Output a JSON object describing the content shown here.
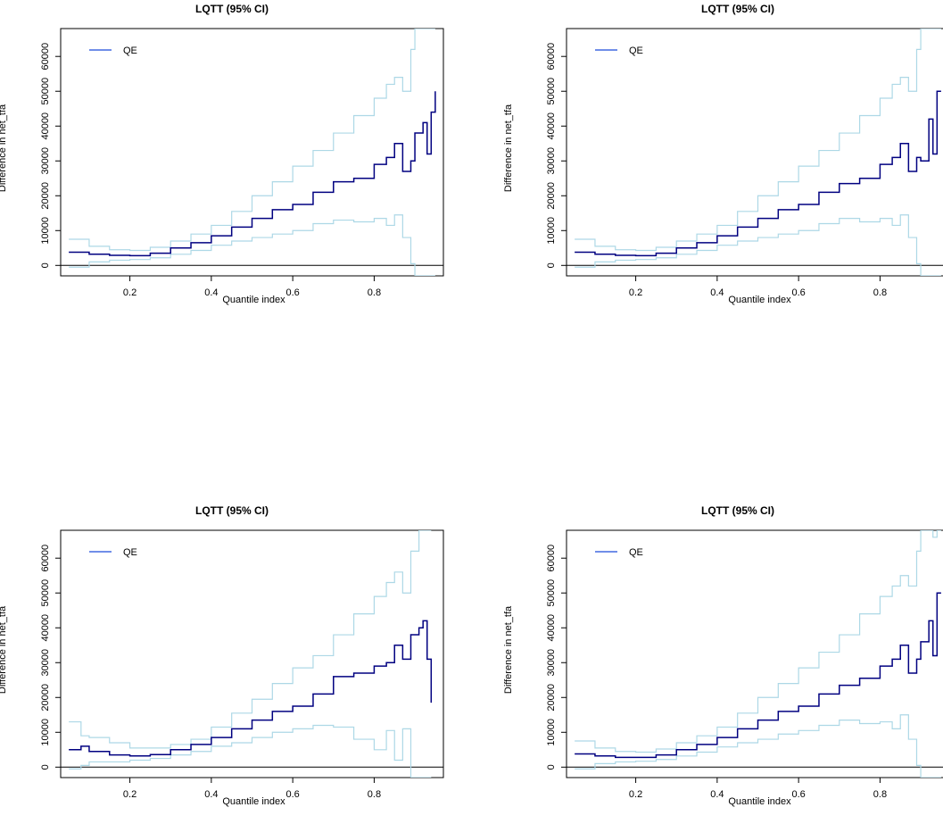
{
  "colors": {
    "estimate": "#000080",
    "ci": "#add8e6",
    "legend_line": "#4169e1",
    "axis": "#000000"
  },
  "chart_data": [
    {
      "type": "line",
      "title": "LQTT (95% CI)",
      "xlabel": "Quantile index",
      "ylabel": "Difference in net_tfa",
      "legend": [
        "QE"
      ],
      "legend_position": "top-left",
      "xlim": [
        0.03,
        0.97
      ],
      "ylim": [
        -3000,
        68000
      ],
      "xticks": [
        "0.2",
        "0.4",
        "0.6",
        "0.8"
      ],
      "yticks": [
        "0",
        "10000",
        "20000",
        "30000",
        "40000",
        "50000",
        "60000"
      ],
      "x": [
        0.05,
        0.1,
        0.15,
        0.2,
        0.25,
        0.3,
        0.35,
        0.4,
        0.45,
        0.5,
        0.55,
        0.6,
        0.65,
        0.7,
        0.75,
        0.8,
        0.83,
        0.85,
        0.87,
        0.89,
        0.9,
        0.92,
        0.93,
        0.94,
        0.95
      ],
      "series": [
        {
          "name": "QE",
          "role": "estimate",
          "values": [
            3800,
            3200,
            2900,
            2800,
            3500,
            5000,
            6500,
            8500,
            11000,
            13500,
            16000,
            17500,
            21000,
            24000,
            25000,
            29000,
            31000,
            35000,
            27000,
            30000,
            38000,
            41000,
            32000,
            44000,
            50000
          ]
        },
        {
          "role": "upper",
          "values": [
            7500,
            5500,
            4500,
            4300,
            5200,
            7000,
            9000,
            11500,
            15500,
            20000,
            24000,
            28500,
            33000,
            38000,
            43000,
            48000,
            52000,
            54000,
            50000,
            62000,
            68000,
            68000,
            68000,
            68000,
            68000
          ]
        },
        {
          "role": "lower",
          "values": [
            -500,
            1000,
            1500,
            1700,
            2200,
            3200,
            4300,
            5800,
            7000,
            8000,
            9000,
            10000,
            12000,
            13000,
            12500,
            13500,
            11500,
            14500,
            8000,
            500,
            -3000,
            -3000,
            -3000,
            -3000,
            -3000
          ]
        }
      ]
    },
    {
      "type": "line",
      "title": "LQTT (95% CI)",
      "xlabel": "Quantile index",
      "ylabel": "Difference in net_tfa",
      "legend": [
        "QE"
      ],
      "legend_position": "top-left",
      "xlim": [
        0.03,
        0.97
      ],
      "ylim": [
        -3000,
        68000
      ],
      "xticks": [
        "0.2",
        "0.4",
        "0.6",
        "0.8"
      ],
      "yticks": [
        "0",
        "10000",
        "20000",
        "30000",
        "40000",
        "50000",
        "60000"
      ],
      "x": [
        0.05,
        0.1,
        0.15,
        0.2,
        0.25,
        0.3,
        0.35,
        0.4,
        0.45,
        0.5,
        0.55,
        0.6,
        0.65,
        0.7,
        0.75,
        0.8,
        0.83,
        0.85,
        0.87,
        0.89,
        0.9,
        0.92,
        0.93,
        0.94,
        0.95
      ],
      "series": [
        {
          "name": "QE",
          "role": "estimate",
          "values": [
            3800,
            3200,
            2900,
            2800,
            3500,
            5000,
            6500,
            8500,
            11000,
            13500,
            16000,
            17500,
            21000,
            23500,
            25000,
            29000,
            31000,
            35000,
            27000,
            31000,
            30000,
            42000,
            32000,
            50000,
            50000
          ]
        },
        {
          "role": "upper",
          "values": [
            7500,
            5500,
            4500,
            4300,
            5200,
            7000,
            9000,
            11500,
            15500,
            20000,
            24000,
            28500,
            33000,
            38000,
            43000,
            48000,
            52000,
            54000,
            50000,
            62000,
            68000,
            68000,
            68000,
            68000,
            68000
          ]
        },
        {
          "role": "lower",
          "values": [
            -500,
            1000,
            1500,
            1700,
            2200,
            3200,
            4300,
            5800,
            7000,
            8000,
            9000,
            10000,
            12000,
            13500,
            12500,
            13500,
            11500,
            14500,
            8000,
            500,
            -3000,
            -3000,
            -3000,
            -3000,
            -3000
          ]
        }
      ]
    },
    {
      "type": "line",
      "title": "LQTT (95% CI)",
      "xlabel": "Quantile index",
      "ylabel": "Difference in net_tfa",
      "legend": [
        "QE"
      ],
      "legend_position": "top-left",
      "xlim": [
        0.03,
        0.97
      ],
      "ylim": [
        -3000,
        68000
      ],
      "xticks": [
        "0.2",
        "0.4",
        "0.6",
        "0.8"
      ],
      "yticks": [
        "0",
        "10000",
        "20000",
        "30000",
        "40000",
        "50000",
        "60000"
      ],
      "x": [
        0.05,
        0.08,
        0.1,
        0.15,
        0.2,
        0.25,
        0.3,
        0.35,
        0.4,
        0.45,
        0.5,
        0.55,
        0.6,
        0.65,
        0.7,
        0.75,
        0.8,
        0.83,
        0.85,
        0.87,
        0.89,
        0.91,
        0.92,
        0.93,
        0.94
      ],
      "series": [
        {
          "name": "QE",
          "role": "estimate",
          "values": [
            5000,
            6000,
            4500,
            3500,
            3200,
            3600,
            5000,
            6500,
            8500,
            11000,
            13500,
            16000,
            17500,
            21000,
            26000,
            27000,
            29000,
            30000,
            35000,
            31000,
            38000,
            40000,
            42000,
            31000,
            18500
          ]
        },
        {
          "role": "upper",
          "values": [
            13000,
            9000,
            8500,
            7000,
            5500,
            5500,
            6500,
            8000,
            11500,
            15500,
            19500,
            24000,
            28500,
            32000,
            38000,
            44000,
            49000,
            53000,
            56000,
            50000,
            62000,
            68000,
            68000,
            68000,
            68000
          ]
        },
        {
          "role": "lower",
          "values": [
            -500,
            500,
            1500,
            1500,
            2000,
            2500,
            3500,
            4500,
            6000,
            7000,
            8500,
            10000,
            11000,
            12000,
            11500,
            8000,
            5000,
            10500,
            2000,
            11000,
            -3000,
            -3000,
            -3000,
            -3000,
            -3000
          ]
        }
      ]
    },
    {
      "type": "line",
      "title": "LQTT (95% CI)",
      "xlabel": "Quantile index",
      "ylabel": "Difference in net_tfa",
      "legend": [
        "QE"
      ],
      "legend_position": "top-left",
      "xlim": [
        0.03,
        0.97
      ],
      "ylim": [
        -3000,
        68000
      ],
      "xticks": [
        "0.2",
        "0.4",
        "0.6",
        "0.8"
      ],
      "yticks": [
        "0",
        "10000",
        "20000",
        "30000",
        "40000",
        "50000",
        "60000"
      ],
      "x": [
        0.05,
        0.1,
        0.15,
        0.2,
        0.25,
        0.3,
        0.35,
        0.4,
        0.45,
        0.5,
        0.55,
        0.6,
        0.65,
        0.7,
        0.75,
        0.8,
        0.83,
        0.85,
        0.87,
        0.89,
        0.9,
        0.92,
        0.93,
        0.94,
        0.95
      ],
      "series": [
        {
          "name": "QE",
          "role": "estimate",
          "values": [
            3800,
            3200,
            2800,
            2800,
            3500,
            5000,
            6500,
            8500,
            11000,
            13500,
            16000,
            17500,
            21000,
            23500,
            25500,
            29000,
            31000,
            35000,
            27000,
            31000,
            36000,
            42000,
            32000,
            50000,
            50000
          ]
        },
        {
          "role": "upper",
          "values": [
            7500,
            5500,
            4500,
            4300,
            5200,
            7000,
            9000,
            11500,
            15500,
            20000,
            24000,
            28500,
            33000,
            38000,
            44000,
            49000,
            52000,
            55000,
            52000,
            62000,
            68000,
            68000,
            66000,
            68000,
            68000
          ]
        },
        {
          "role": "lower",
          "values": [
            -500,
            1000,
            1500,
            1700,
            2200,
            3200,
            4300,
            5800,
            7000,
            8000,
            9500,
            10500,
            12000,
            13500,
            12500,
            13000,
            11000,
            15000,
            8000,
            500,
            -3000,
            -3000,
            -3000,
            -3000,
            -3000
          ]
        }
      ]
    }
  ]
}
